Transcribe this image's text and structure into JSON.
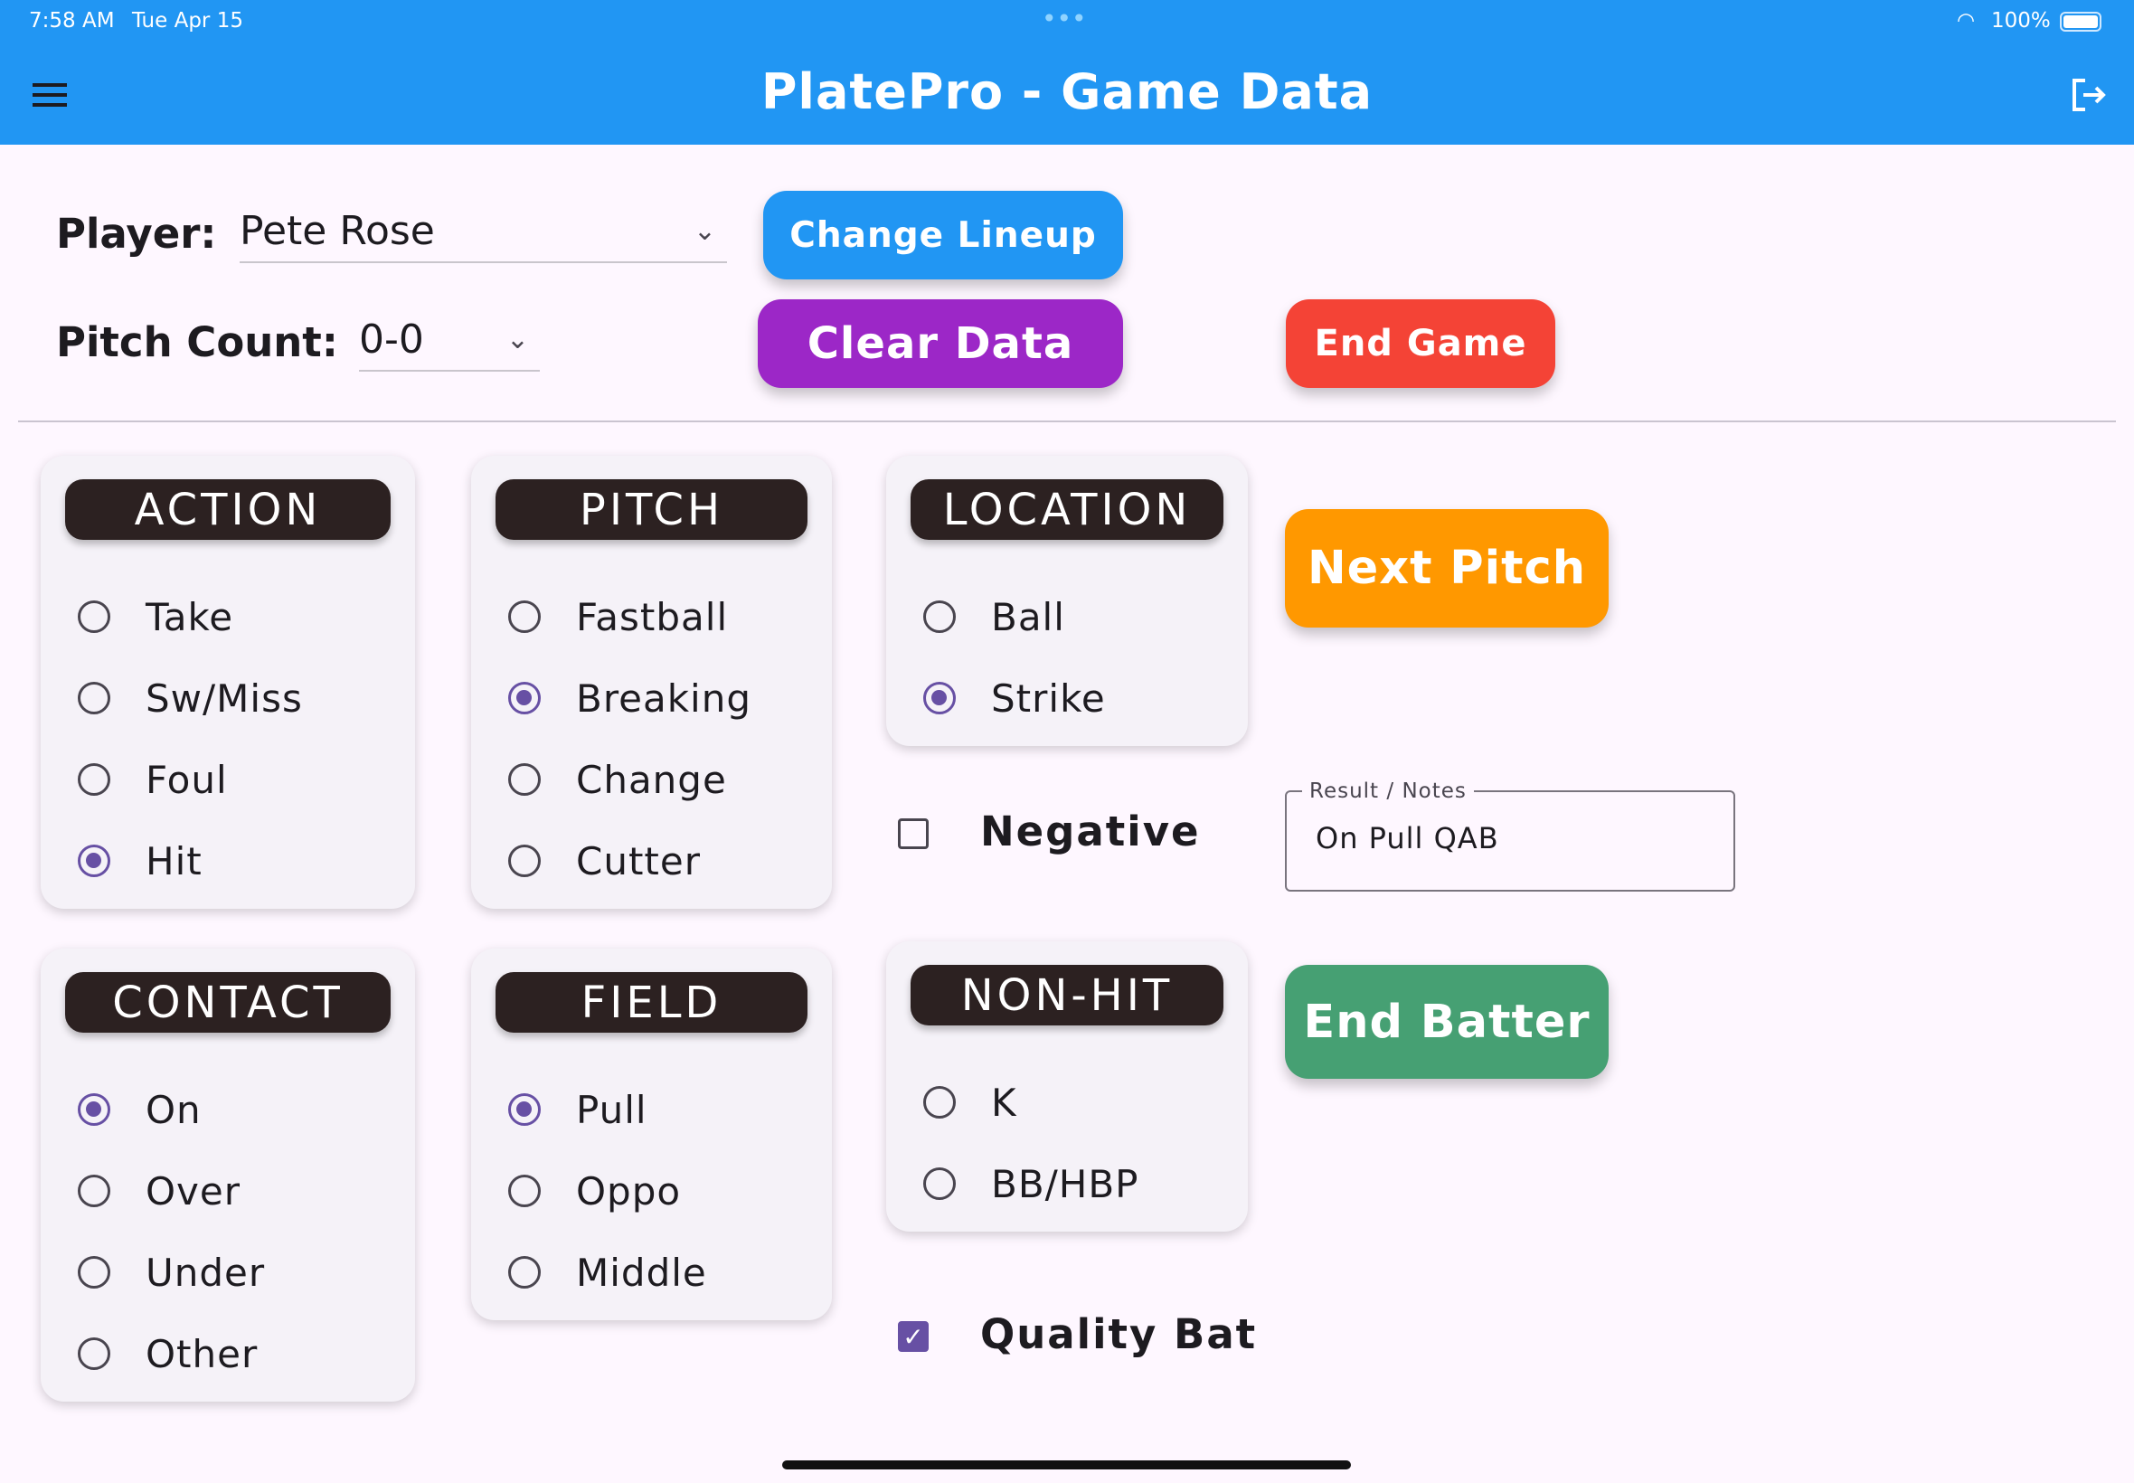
{
  "status_bar": {
    "time": "7:58 AM",
    "date": "Tue Apr 15",
    "battery": "100%"
  },
  "app_bar": {
    "title": "PlatePro - Game Data",
    "menu_icon": "hamburger-menu-icon",
    "logout_icon": "logout-icon"
  },
  "player": {
    "label": "Player:",
    "value": "Pete Rose"
  },
  "pitch_count": {
    "label": "Pitch Count:",
    "value": "0-0"
  },
  "buttons": {
    "change_lineup": {
      "label": "Change Lineup",
      "color": "#2196f3"
    },
    "clear_data": {
      "label": "Clear Data",
      "color": "#9c27c7"
    },
    "end_game": {
      "label": "End Game",
      "color": "#f44336"
    },
    "next_pitch": {
      "label": "Next Pitch",
      "color": "#ff9800"
    },
    "end_batter": {
      "label": "End Batter",
      "color": "#46a073"
    }
  },
  "groups": [
    {
      "title": "ACTION",
      "options": [
        "Take",
        "Sw/Miss",
        "Foul",
        "Hit"
      ],
      "selected": "Hit"
    },
    {
      "title": "PITCH",
      "options": [
        "Fastball",
        "Breaking",
        "Change",
        "Cutter"
      ],
      "selected": "Breaking"
    },
    {
      "title": "LOCATION",
      "options": [
        "Ball",
        "Strike"
      ],
      "selected": "Strike"
    },
    {
      "title": "CONTACT",
      "options": [
        "On",
        "Over",
        "Under",
        "Other"
      ],
      "selected": "On"
    },
    {
      "title": "FIELD",
      "options": [
        "Pull",
        "Oppo",
        "Middle"
      ],
      "selected": "Pull"
    },
    {
      "title": "NON-HIT",
      "options": [
        "K",
        "BB/HBP"
      ],
      "selected": null
    }
  ],
  "checkboxes": {
    "negative": {
      "label": "Negative",
      "checked": false
    },
    "quality_bat": {
      "label": "Quality Bat",
      "checked": true
    }
  },
  "notes": {
    "label": "Result / Notes",
    "value": "On Pull QAB"
  },
  "accent_color": "#6750a4"
}
